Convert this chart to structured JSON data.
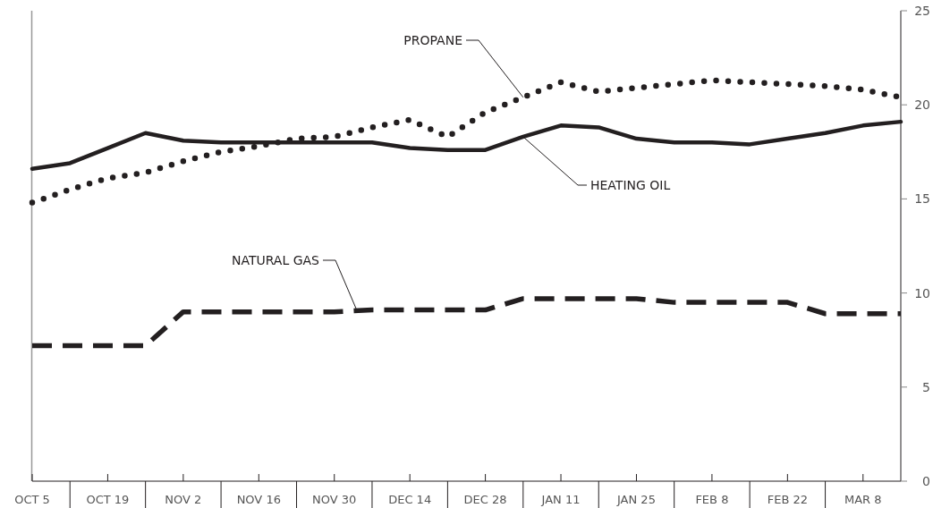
{
  "chart_data": {
    "type": "line",
    "categories": [
      "OCT 5",
      null,
      "OCT 19",
      null,
      "NOV 2",
      null,
      "NOV 16",
      null,
      "NOV 30",
      null,
      "DEC 14",
      null,
      "DEC 28",
      null,
      "JAN 11",
      null,
      "JAN 25",
      null,
      "FEB 8",
      null,
      "FEB 22",
      null,
      "MAR 8",
      null
    ],
    "ylim": [
      0,
      25
    ],
    "yticks": [
      0,
      5,
      10,
      15,
      20,
      25
    ],
    "grid": false,
    "marker": "none",
    "series": [
      {
        "name": "PROPANE",
        "color": "#231f20",
        "line_style": "dotted",
        "values": [
          14.8,
          15.5,
          16.1,
          16.4,
          17.0,
          17.5,
          17.8,
          18.2,
          18.3,
          18.8,
          19.2,
          18.3,
          19.6,
          20.4,
          21.2,
          20.7,
          20.9,
          21.1,
          21.3,
          21.2,
          21.1,
          21.0,
          20.8,
          20.4
        ]
      },
      {
        "name": "HEATING OIL",
        "color": "#231f20",
        "line_style": "solid",
        "values": [
          16.6,
          16.9,
          17.7,
          18.5,
          18.1,
          18.0,
          18.0,
          18.0,
          18.0,
          18.0,
          17.7,
          17.6,
          17.6,
          18.3,
          18.9,
          18.8,
          18.2,
          18.0,
          18.0,
          17.9,
          18.2,
          18.5,
          18.9,
          19.1
        ]
      },
      {
        "name": "NATURAL GAS",
        "color": "#231f20",
        "line_style": "dashed",
        "values": [
          7.2,
          7.2,
          7.2,
          7.2,
          9.0,
          9.0,
          9.0,
          9.0,
          9.0,
          9.1,
          9.1,
          9.1,
          9.1,
          9.7,
          9.7,
          9.7,
          9.7,
          9.5,
          9.5,
          9.5,
          9.5,
          8.9,
          8.9,
          8.9
        ]
      }
    ]
  }
}
